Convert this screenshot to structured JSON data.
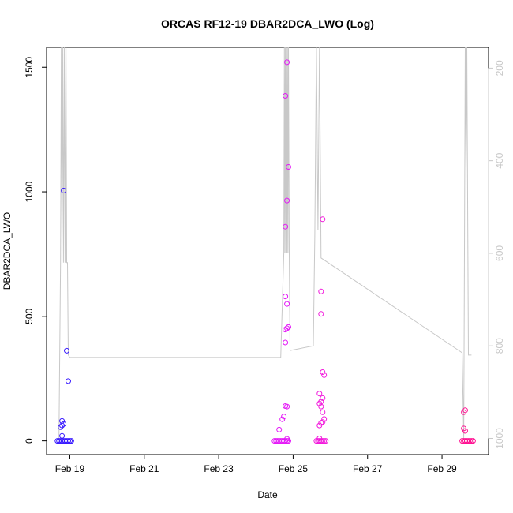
{
  "chart_data": {
    "type": "scatter",
    "title": "ORCAS RF12-19 DBAR2DCA_LWO (Log)",
    "xlabel": "Date",
    "ylabel": "DBAR2DCA_LWO",
    "x_ticks": [
      "Feb 19",
      "Feb 21",
      "Feb 23",
      "Feb 25",
      "Feb 27",
      "Feb 29"
    ],
    "y_ticks": [
      0,
      500,
      1000,
      1500
    ],
    "y2_ticks": [
      200,
      400,
      600,
      800,
      1000
    ],
    "xlim": [
      "2016-02-18 09:00",
      "2016-03-01 06:00"
    ],
    "ylim": [
      -55,
      1580
    ],
    "y2lim": [
      1035,
      155
    ],
    "grid": false,
    "series": [
      {
        "color": "#3a1cff",
        "points": [
          [
            "2016-02-18 20:00",
            1005
          ],
          [
            "2016-02-18 22:00",
            362
          ],
          [
            "2016-02-18 23:00",
            240
          ],
          [
            "2016-02-18 19:00",
            80
          ],
          [
            "2016-02-18 20:00",
            68
          ],
          [
            "2016-02-18 18:00",
            55
          ],
          [
            "2016-02-18 19:00",
            62
          ],
          [
            "2016-02-18 19:00",
            20
          ],
          [
            "2016-02-18 16:00",
            0
          ],
          [
            "2016-02-18 17:00",
            0
          ],
          [
            "2016-02-18 18:00",
            0
          ],
          [
            "2016-02-18 19:00",
            0
          ],
          [
            "2016-02-18 20:00",
            0
          ],
          [
            "2016-02-18 21:00",
            0
          ],
          [
            "2016-02-18 22:00",
            0
          ],
          [
            "2016-02-18 23:00",
            0
          ],
          [
            "2016-02-19 00:00",
            0
          ],
          [
            "2016-02-19 01:00",
            0
          ]
        ]
      },
      {
        "color": "#e41af7",
        "points": [
          [
            "2016-02-24 20:00",
            1520
          ],
          [
            "2016-02-24 19:00",
            1385
          ],
          [
            "2016-02-24 21:00",
            1100
          ],
          [
            "2016-02-24 20:00",
            965
          ],
          [
            "2016-02-24 19:00",
            860
          ],
          [
            "2016-02-24 19:00",
            580
          ],
          [
            "2016-02-24 20:00",
            550
          ],
          [
            "2016-02-24 21:00",
            457
          ],
          [
            "2016-02-24 20:00",
            452
          ],
          [
            "2016-02-24 19:00",
            447
          ],
          [
            "2016-02-24 19:00",
            395
          ],
          [
            "2016-02-24 19:00",
            140
          ],
          [
            "2016-02-24 20:00",
            138
          ],
          [
            "2016-02-24 18:00",
            98
          ],
          [
            "2016-02-24 17:00",
            87
          ],
          [
            "2016-02-24 15:00",
            45
          ],
          [
            "2016-02-24 20:00",
            8
          ],
          [
            "2016-02-24 12:00",
            0
          ],
          [
            "2016-02-24 13:00",
            0
          ],
          [
            "2016-02-24 14:00",
            0
          ],
          [
            "2016-02-24 15:00",
            0
          ],
          [
            "2016-02-24 16:00",
            0
          ],
          [
            "2016-02-24 17:00",
            0
          ],
          [
            "2016-02-24 18:00",
            0
          ],
          [
            "2016-02-24 19:00",
            0
          ],
          [
            "2016-02-24 20:00",
            0
          ],
          [
            "2016-02-24 21:00",
            0
          ]
        ]
      },
      {
        "color": "#f21adc",
        "points": [
          [
            "2016-02-25 19:00",
            890
          ],
          [
            "2016-02-25 18:00",
            600
          ],
          [
            "2016-02-25 18:00",
            510
          ],
          [
            "2016-02-25 19:00",
            276
          ],
          [
            "2016-02-25 20:00",
            264
          ],
          [
            "2016-02-25 17:00",
            190
          ],
          [
            "2016-02-25 19:00",
            172
          ],
          [
            "2016-02-25 18:00",
            158
          ],
          [
            "2016-02-25 17:00",
            150
          ],
          [
            "2016-02-25 18:00",
            138
          ],
          [
            "2016-02-25 19:00",
            115
          ],
          [
            "2016-02-25 20:00",
            88
          ],
          [
            "2016-02-25 19:00",
            76
          ],
          [
            "2016-02-25 18:00",
            72
          ],
          [
            "2016-02-25 17:00",
            62
          ],
          [
            "2016-02-25 17:00",
            10
          ],
          [
            "2016-02-25 15:00",
            0
          ],
          [
            "2016-02-25 16:00",
            0
          ],
          [
            "2016-02-25 17:00",
            0
          ],
          [
            "2016-02-25 18:00",
            0
          ],
          [
            "2016-02-25 19:00",
            0
          ],
          [
            "2016-02-25 20:00",
            0
          ],
          [
            "2016-02-25 21:00",
            0
          ]
        ]
      },
      {
        "color": "#ff1493",
        "points": [
          [
            "2016-02-29 15:00",
            123
          ],
          [
            "2016-02-29 14:00",
            115
          ],
          [
            "2016-02-29 14:00",
            50
          ],
          [
            "2016-02-29 15:00",
            40
          ],
          [
            "2016-02-29 13:00",
            0
          ],
          [
            "2016-02-29 14:00",
            0
          ],
          [
            "2016-02-29 15:00",
            0
          ],
          [
            "2016-02-29 16:00",
            0
          ],
          [
            "2016-02-29 17:00",
            0
          ],
          [
            "2016-02-29 18:00",
            0
          ],
          [
            "2016-02-29 19:00",
            0
          ],
          [
            "2016-02-29 20:00",
            0
          ]
        ]
      }
    ],
    "pressure_line": {
      "color": "#c8c8c8",
      "points": [
        [
          "2016-02-18 16:00",
          1000
        ],
        [
          "2016-02-18 17:00",
          1000
        ],
        [
          "2016-02-18 18:00",
          620
        ],
        [
          "2016-02-18 18:30",
          150
        ],
        [
          "2016-02-18 19:00",
          620
        ],
        [
          "2016-02-18 19:30",
          150
        ],
        [
          "2016-02-18 20:00",
          620
        ],
        [
          "2016-02-18 20:30",
          150
        ],
        [
          "2016-02-18 21:00",
          620
        ],
        [
          "2016-02-18 21:30",
          150
        ],
        [
          "2016-02-18 22:00",
          620
        ],
        [
          "2016-02-18 22:30",
          620
        ],
        [
          "2016-02-18 23:00",
          820
        ],
        [
          "2016-02-19 00:00",
          825
        ],
        [
          "2016-02-24 16:00",
          825
        ],
        [
          "2016-02-24 18:00",
          600
        ],
        [
          "2016-02-24 18:20",
          150
        ],
        [
          "2016-02-24 18:40",
          600
        ],
        [
          "2016-02-24 19:00",
          150
        ],
        [
          "2016-02-24 19:20",
          600
        ],
        [
          "2016-02-24 19:40",
          150
        ],
        [
          "2016-02-24 20:00",
          600
        ],
        [
          "2016-02-24 20:20",
          150
        ],
        [
          "2016-02-24 20:40",
          600
        ],
        [
          "2016-02-24 21:00",
          150
        ],
        [
          "2016-02-24 21:30",
          600
        ],
        [
          "2016-02-24 22:00",
          810
        ],
        [
          "2016-02-25 13:00",
          800
        ],
        [
          "2016-02-25 14:00",
          560
        ],
        [
          "2016-02-25 15:00",
          150
        ],
        [
          "2016-02-25 16:00",
          550
        ],
        [
          "2016-02-25 17:00",
          150
        ],
        [
          "2016-02-25 18:00",
          610
        ],
        [
          "2016-02-29 13:00",
          815
        ],
        [
          "2016-02-29 14:00",
          1000
        ],
        [
          "2016-02-29 15:00",
          150
        ],
        [
          "2016-02-29 15:30",
          420
        ],
        [
          "2016-02-29 16:00",
          150
        ],
        [
          "2016-02-29 17:00",
          820
        ],
        [
          "2016-02-29 19:00",
          820
        ]
      ]
    }
  }
}
